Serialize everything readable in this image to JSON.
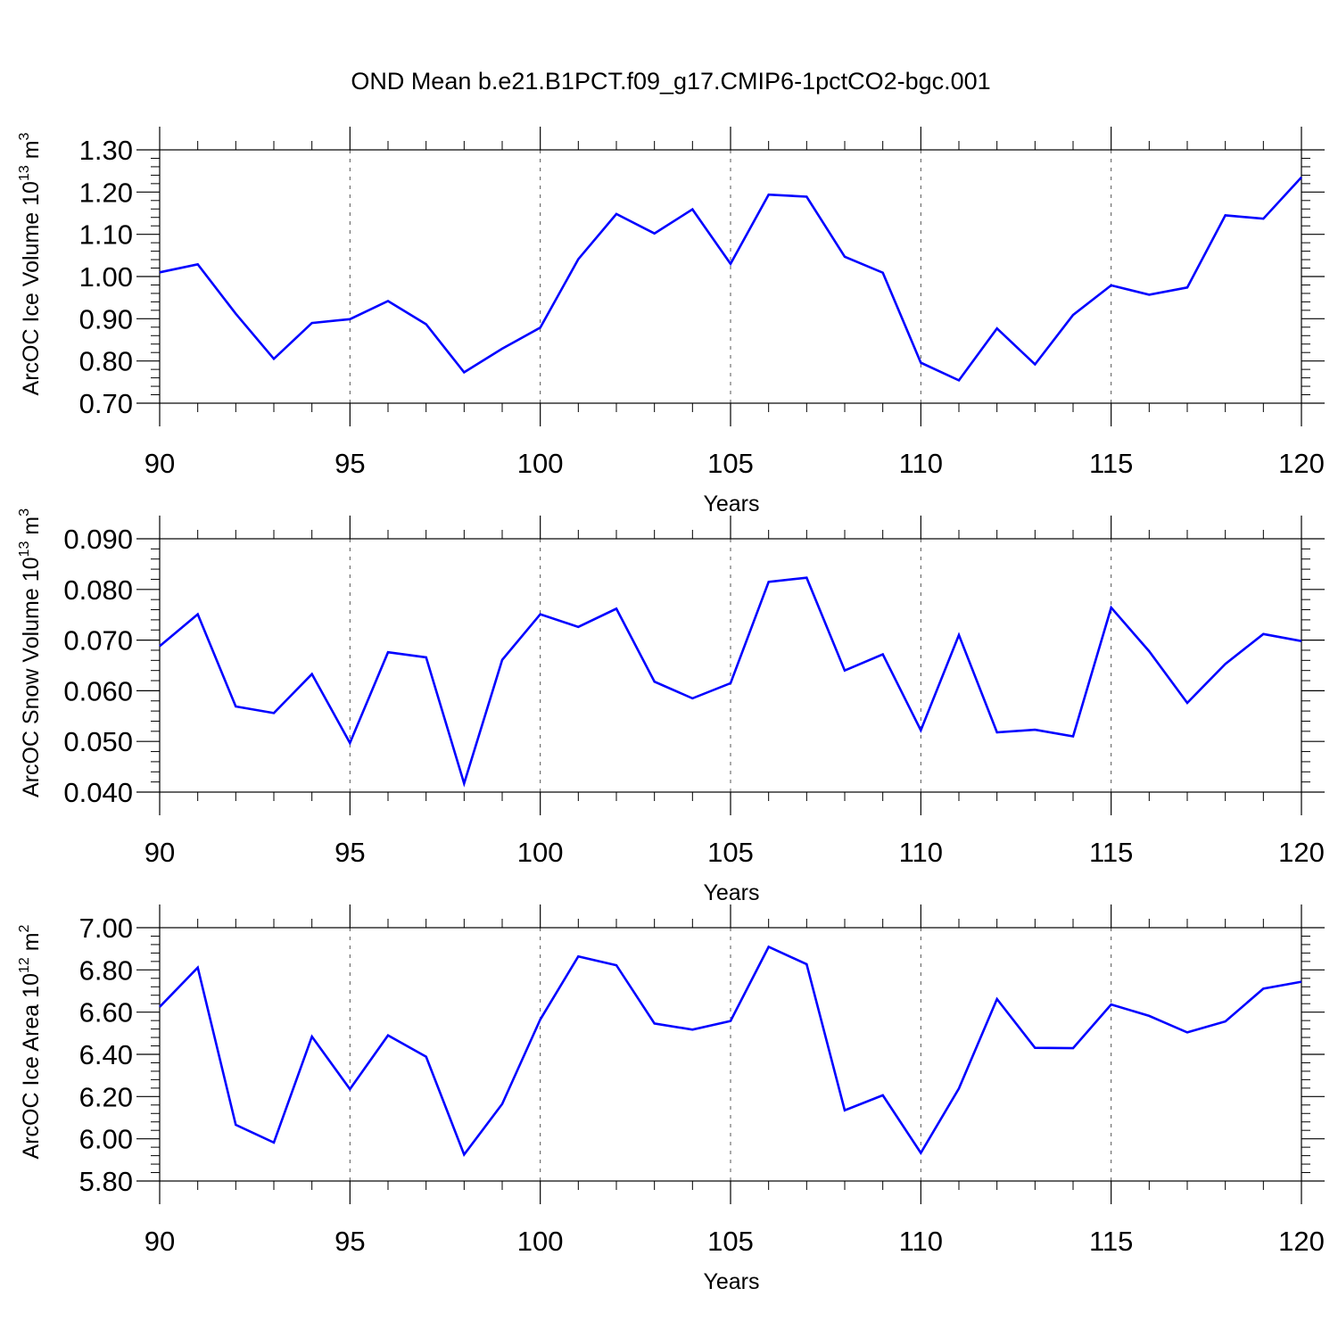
{
  "colors": {
    "line": "#0000ff",
    "axis": "#000000",
    "grid": "#555555"
  },
  "chart_data": [
    {
      "type": "line",
      "title": "OND Mean b.e21.B1PCT.f09_g17.CMIP6-1pctCO2-bgc.001",
      "xlabel": "Years",
      "ylabel": {
        "main": "ArcOC Ice Volume 10",
        "exp": "13",
        "unit": " m",
        "unit_exp": "3"
      },
      "xlim": [
        90,
        120
      ],
      "ylim": [
        0.7,
        1.3
      ],
      "x_ticks": [
        "90",
        "95",
        "100",
        "105",
        "110",
        "115",
        "120"
      ],
      "y_ticks": [
        "0.70",
        "0.80",
        "0.90",
        "1.00",
        "1.10",
        "1.20",
        "1.30"
      ],
      "x_gridlines": [
        95,
        100,
        105,
        110,
        115
      ],
      "series": [
        {
          "x": [
            90,
            91,
            92,
            93,
            94,
            95,
            96,
            97,
            98,
            99,
            100,
            101,
            102,
            103,
            104,
            105,
            106,
            107,
            108,
            109,
            110,
            111,
            112,
            113,
            114,
            115,
            116,
            117,
            118,
            119,
            120
          ],
          "values": [
            1.01,
            1.029,
            0.912,
            0.805,
            0.89,
            0.899,
            0.942,
            0.887,
            0.773,
            0.829,
            0.879,
            1.041,
            1.148,
            1.102,
            1.159,
            1.03,
            1.194,
            1.189,
            1.047,
            1.009,
            0.796,
            0.754,
            0.877,
            0.792,
            0.909,
            0.979,
            0.957,
            0.974,
            1.145,
            1.137,
            1.235
          ]
        }
      ]
    },
    {
      "type": "line",
      "title": "",
      "xlabel": "Years",
      "ylabel": {
        "main": "ArcOC Snow Volume 10",
        "exp": "13",
        "unit": " m",
        "unit_exp": "3"
      },
      "xlim": [
        90,
        120
      ],
      "ylim": [
        0.04,
        0.09
      ],
      "x_ticks": [
        "90",
        "95",
        "100",
        "105",
        "110",
        "115",
        "120"
      ],
      "y_ticks": [
        "0.040",
        "0.050",
        "0.060",
        "0.070",
        "0.080",
        "0.090"
      ],
      "x_gridlines": [
        95,
        100,
        105,
        110,
        115
      ],
      "series": [
        {
          "x": [
            90,
            91,
            92,
            93,
            94,
            95,
            96,
            97,
            98,
            99,
            100,
            101,
            102,
            103,
            104,
            105,
            106,
            107,
            108,
            109,
            110,
            111,
            112,
            113,
            114,
            115,
            116,
            117,
            118,
            119,
            120
          ],
          "values": [
            0.0688,
            0.0751,
            0.0569,
            0.0556,
            0.0633,
            0.0497,
            0.0676,
            0.0666,
            0.0417,
            0.0661,
            0.0751,
            0.0726,
            0.0762,
            0.0618,
            0.0585,
            0.0615,
            0.0815,
            0.0823,
            0.064,
            0.0672,
            0.0522,
            0.071,
            0.0518,
            0.0523,
            0.051,
            0.0764,
            0.0678,
            0.0576,
            0.0653,
            0.0712,
            0.0698
          ]
        }
      ]
    },
    {
      "type": "line",
      "title": "",
      "xlabel": "Years",
      "ylabel": {
        "main": "ArcOC Ice Area 10",
        "exp": "12",
        "unit": " m",
        "unit_exp": "2"
      },
      "xlim": [
        90,
        120
      ],
      "ylim": [
        5.8,
        7.0
      ],
      "x_ticks": [
        "90",
        "95",
        "100",
        "105",
        "110",
        "115",
        "120"
      ],
      "y_ticks": [
        "5.80",
        "6.00",
        "6.20",
        "6.40",
        "6.60",
        "6.80",
        "7.00"
      ],
      "x_gridlines": [
        95,
        100,
        105,
        110,
        115
      ],
      "series": [
        {
          "x": [
            90,
            91,
            92,
            93,
            94,
            95,
            96,
            97,
            98,
            99,
            100,
            101,
            102,
            103,
            104,
            105,
            106,
            107,
            108,
            109,
            110,
            111,
            112,
            113,
            114,
            115,
            116,
            117,
            118,
            119,
            120
          ],
          "values": [
            6.625,
            6.811,
            6.066,
            5.982,
            6.484,
            6.235,
            6.49,
            6.389,
            5.925,
            6.165,
            6.565,
            6.864,
            6.822,
            6.546,
            6.517,
            6.558,
            6.909,
            6.827,
            6.135,
            6.206,
            5.933,
            6.238,
            6.662,
            6.431,
            6.429,
            6.636,
            6.582,
            6.504,
            6.556,
            6.711,
            6.744
          ]
        }
      ]
    }
  ]
}
